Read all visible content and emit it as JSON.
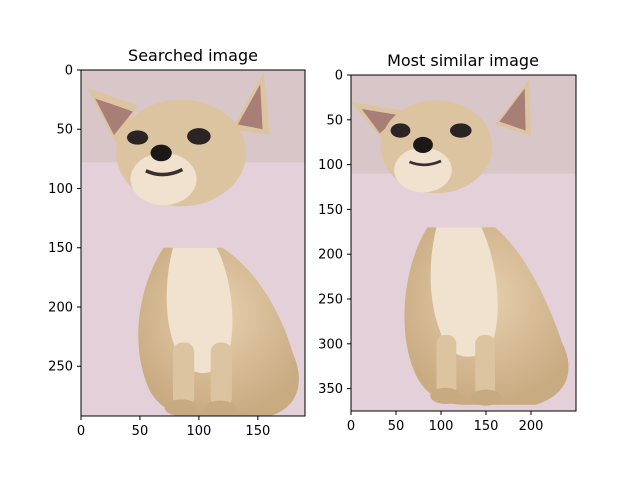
{
  "panels": [
    {
      "title": "Searched image",
      "image_size": {
        "width": 190,
        "height": 292
      },
      "x_ticks": [
        {
          "value": 0,
          "label": "0"
        },
        {
          "value": 50,
          "label": "50"
        },
        {
          "value": 100,
          "label": "100"
        },
        {
          "value": 150,
          "label": "150"
        }
      ],
      "y_ticks": [
        {
          "value": 0,
          "label": "0"
        },
        {
          "value": 50,
          "label": "50"
        },
        {
          "value": 100,
          "label": "100"
        },
        {
          "value": 150,
          "label": "150"
        },
        {
          "value": 200,
          "label": "200"
        },
        {
          "value": 250,
          "label": "250"
        }
      ],
      "subject": "chihuahua-photo"
    },
    {
      "title": "Most similar image",
      "image_size": {
        "width": 250,
        "height": 375
      },
      "x_ticks": [
        {
          "value": 0,
          "label": "0"
        },
        {
          "value": 50,
          "label": "50"
        },
        {
          "value": 100,
          "label": "100"
        },
        {
          "value": 150,
          "label": "150"
        },
        {
          "value": 200,
          "label": "200"
        }
      ],
      "y_ticks": [
        {
          "value": 0,
          "label": "0"
        },
        {
          "value": 50,
          "label": "50"
        },
        {
          "value": 100,
          "label": "100"
        },
        {
          "value": 150,
          "label": "150"
        },
        {
          "value": 200,
          "label": "200"
        },
        {
          "value": 250,
          "label": "250"
        },
        {
          "value": 300,
          "label": "300"
        },
        {
          "value": 350,
          "label": "350"
        }
      ],
      "subject": "chihuahua-photo"
    }
  ],
  "colors": {
    "wall": "#d8c6c9",
    "floor": "#e4d0d8",
    "fur": "#dcc4a0",
    "fur_shadow": "#c7aa80",
    "chest": "#f0e2cf",
    "ear_inner": "#a87e76",
    "eye": "#2b2424",
    "nose": "#1d1818"
  }
}
